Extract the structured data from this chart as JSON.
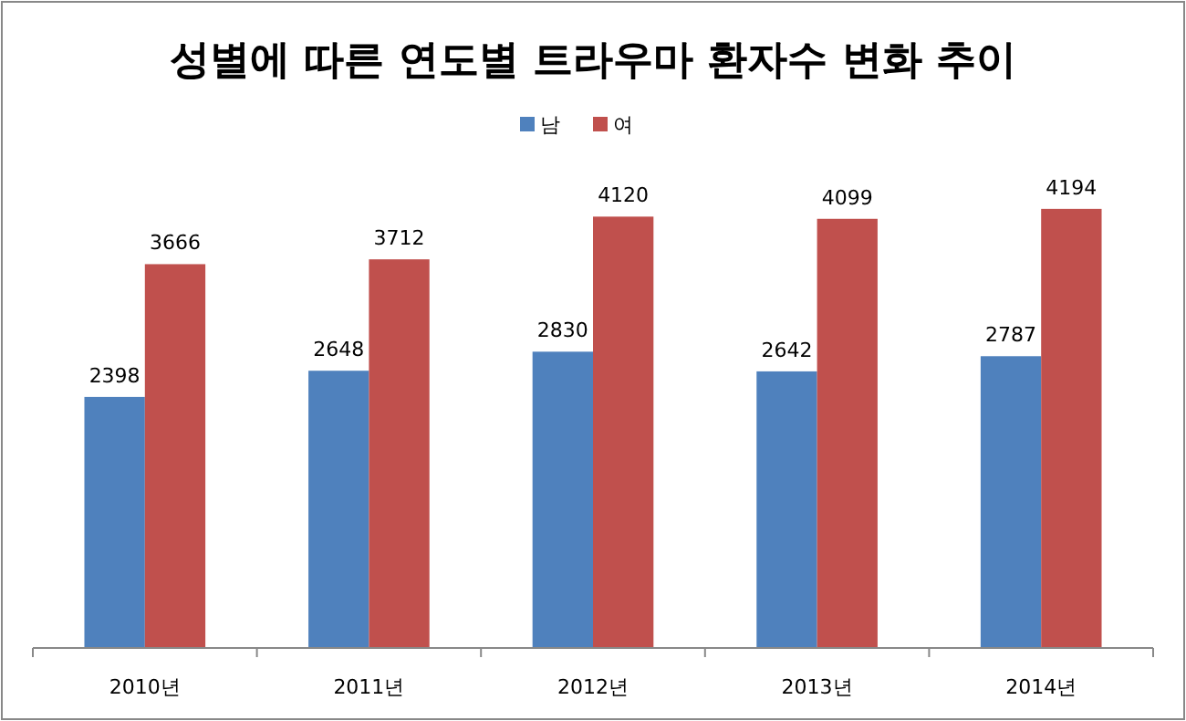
{
  "chart_data": {
    "type": "bar",
    "title": "성별에 따른 연도별 트라우마 환자수 변화 추이",
    "categories": [
      "2010년",
      "2011년",
      "2012년",
      "2013년",
      "2014년"
    ],
    "series": [
      {
        "name": "남",
        "color": "#4f81bd",
        "values": [
          2398,
          2648,
          2830,
          2642,
          2787
        ]
      },
      {
        "name": "여",
        "color": "#c0504d",
        "values": [
          3666,
          3712,
          4120,
          4099,
          4194
        ]
      }
    ],
    "data_labels": true,
    "legend": "top",
    "grid": false
  }
}
